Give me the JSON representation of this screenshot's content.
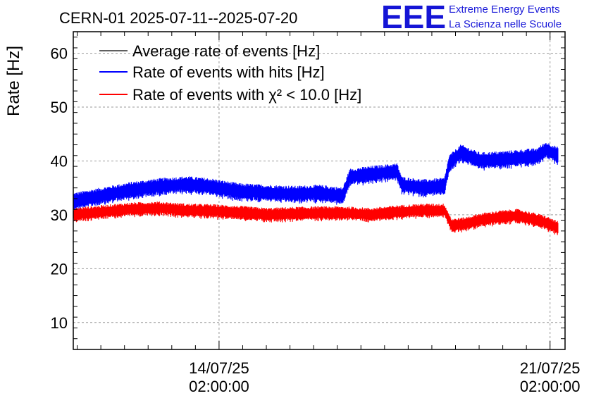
{
  "chart_data": {
    "type": "line",
    "title": "CERN-01 2025-07-11--2025-07-20",
    "ylabel": "Rate [Hz]",
    "xlabel": "",
    "ylim": [
      5,
      64
    ],
    "yticks": [
      10,
      20,
      30,
      40,
      50,
      60
    ],
    "x_unit": "days since 2025-07-11 00:00",
    "xlim": [
      0,
      10.4
    ],
    "xticks": [
      {
        "value": 3.083,
        "line1": "14/07/25",
        "line2": "02:00:00"
      },
      {
        "value": 10.083,
        "line1": "21/07/25",
        "line2": "02:00:00"
      }
    ],
    "grid": true,
    "legend_position": "top-left",
    "logo": {
      "mark": "EEE",
      "line1": "Extreme Energy Events",
      "line2": "La Scienza nelle Scuole"
    },
    "series": [
      {
        "name": "Average rate of events [Hz]",
        "color": "#000000",
        "x": [],
        "values": []
      },
      {
        "name": "Rate of events with hits [Hz]",
        "color": "#0000ff",
        "x": [
          0.0,
          0.6,
          1.2,
          1.8,
          2.4,
          2.9,
          3.5,
          4.1,
          4.7,
          5.2,
          5.7,
          5.85,
          6.3,
          6.85,
          6.95,
          7.4,
          7.85,
          7.95,
          8.2,
          8.6,
          9.0,
          9.4,
          9.8,
          10.0,
          10.25
        ],
        "values": [
          32.5,
          33.5,
          34.5,
          35.2,
          35.6,
          35.2,
          34.3,
          34.0,
          33.8,
          34.0,
          33.5,
          37.0,
          37.5,
          38.0,
          35.5,
          35.0,
          35.3,
          39.5,
          41.5,
          40.0,
          40.2,
          40.5,
          40.8,
          42.0,
          41.0
        ],
        "band": 1.6
      },
      {
        "name": "Rate of events with χ² < 10.0 [Hz]",
        "color": "#ff0000",
        "x": [
          0.0,
          0.6,
          1.2,
          1.8,
          2.4,
          2.9,
          3.5,
          4.1,
          4.7,
          5.2,
          5.7,
          6.3,
          6.85,
          7.4,
          7.85,
          8.0,
          8.3,
          8.6,
          9.0,
          9.4,
          9.8,
          10.0,
          10.25
        ],
        "values": [
          30.0,
          30.5,
          31.0,
          31.2,
          30.8,
          30.7,
          30.4,
          30.0,
          30.2,
          30.3,
          30.3,
          30.0,
          30.5,
          30.8,
          30.8,
          28.0,
          28.3,
          29.0,
          29.5,
          29.8,
          29.0,
          28.5,
          27.5
        ],
        "band": 1.3
      }
    ]
  }
}
